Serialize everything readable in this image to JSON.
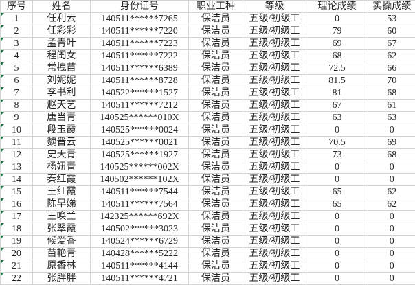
{
  "colors": {
    "background": "#ffffff",
    "grid_line": "#d4d4d4",
    "text": "#262626",
    "stored_as_text_indicator_green": "#1f7244"
  },
  "icons": {
    "stored_as_text_indicator": "green corner triangle in each serial-number cell"
  },
  "table": {
    "headers": [
      "序号",
      "姓名",
      "身份证号",
      "职业工种",
      "等级",
      "理论成绩",
      "实操成绩"
    ],
    "rows": [
      {
        "no": "1",
        "name": "任利云",
        "id": "140511******7265",
        "job": "保洁员",
        "level": "五级/初级工",
        "theory": "0",
        "practical": "53"
      },
      {
        "no": "2",
        "name": "任彩彩",
        "id": "140511******7220",
        "job": "保洁员",
        "level": "五级/初级工",
        "theory": "79",
        "practical": "60"
      },
      {
        "no": "3",
        "name": "孟青叶",
        "id": "140511******7223",
        "job": "保洁员",
        "level": "五级/初级工",
        "theory": "69",
        "practical": "67"
      },
      {
        "no": "4",
        "name": "程闺女",
        "id": "140511******7222",
        "job": "保洁员",
        "level": "五级/初级工",
        "theory": "68",
        "practical": "62"
      },
      {
        "no": "5",
        "name": "常拽苗",
        "id": "140511******6389",
        "job": "保洁员",
        "level": "五级/初级工",
        "theory": "72.5",
        "practical": "66"
      },
      {
        "no": "6",
        "name": "刘妮妮",
        "id": "140511******8728",
        "job": "保洁员",
        "level": "五级/初级工",
        "theory": "81.5",
        "practical": "70"
      },
      {
        "no": "7",
        "name": "李书利",
        "id": "140522******1527",
        "job": "保洁员",
        "level": "五级/初级工",
        "theory": "81",
        "practical": "68"
      },
      {
        "no": "8",
        "name": "赵天艺",
        "id": "140511******7212",
        "job": "保洁员",
        "level": "五级/初级工",
        "theory": "67",
        "practical": "61"
      },
      {
        "no": "9",
        "name": "唐当青",
        "id": "140525******010X",
        "job": "保洁员",
        "level": "五级/初级工",
        "theory": "63",
        "practical": "63"
      },
      {
        "no": "10",
        "name": "段玉霞",
        "id": "140525******0024",
        "job": "保洁员",
        "level": "五级/初级工",
        "theory": "0",
        "practical": "0"
      },
      {
        "no": "11",
        "name": "魏晋云",
        "id": "140525******0021",
        "job": "保洁员",
        "level": "五级/初级工",
        "theory": "70.5",
        "practical": "69"
      },
      {
        "no": "12",
        "name": "史天青",
        "id": "140525******1927",
        "job": "保洁员",
        "level": "五级/初级工",
        "theory": "73",
        "practical": "68"
      },
      {
        "no": "13",
        "name": "杨妞青",
        "id": "140525******002X",
        "job": "保洁员",
        "level": "五级/初级工",
        "theory": "0",
        "practical": "0"
      },
      {
        "no": "14",
        "name": "秦红霞",
        "id": "140502******102X",
        "job": "保洁员",
        "level": "五级/初级工",
        "theory": "0",
        "practical": "0"
      },
      {
        "no": "15",
        "name": "王红霞",
        "id": "140511******7544",
        "job": "保洁员",
        "level": "五级/初级工",
        "theory": "65",
        "practical": "62"
      },
      {
        "no": "16",
        "name": "陈早娣",
        "id": "140511******7564",
        "job": "保洁员",
        "level": "五级/初级工",
        "theory": "65",
        "practical": "62"
      },
      {
        "no": "17",
        "name": "王唤兰",
        "id": "142325******692X",
        "job": "保洁员",
        "level": "五级/初级工",
        "theory": "0",
        "practical": "0"
      },
      {
        "no": "18",
        "name": "张翠霞",
        "id": "140502******3023",
        "job": "保洁员",
        "level": "五级/初级工",
        "theory": "0",
        "practical": "0"
      },
      {
        "no": "19",
        "name": "候爱香",
        "id": "140524******6729",
        "job": "保洁员",
        "level": "五级/初级工",
        "theory": "0",
        "practical": "0"
      },
      {
        "no": "20",
        "name": "苗艳青",
        "id": "140428******5222",
        "job": "保洁员",
        "level": "五级/初级工",
        "theory": "0",
        "practical": "0"
      },
      {
        "no": "21",
        "name": "原香林",
        "id": "140511******4144",
        "job": "保洁员",
        "level": "五级/初级工",
        "theory": "0",
        "practical": "0"
      },
      {
        "no": "22",
        "name": "张胖胖",
        "id": "140511******4721",
        "job": "保洁员",
        "level": "五级/初级工",
        "theory": "0",
        "practical": "0"
      }
    ]
  }
}
